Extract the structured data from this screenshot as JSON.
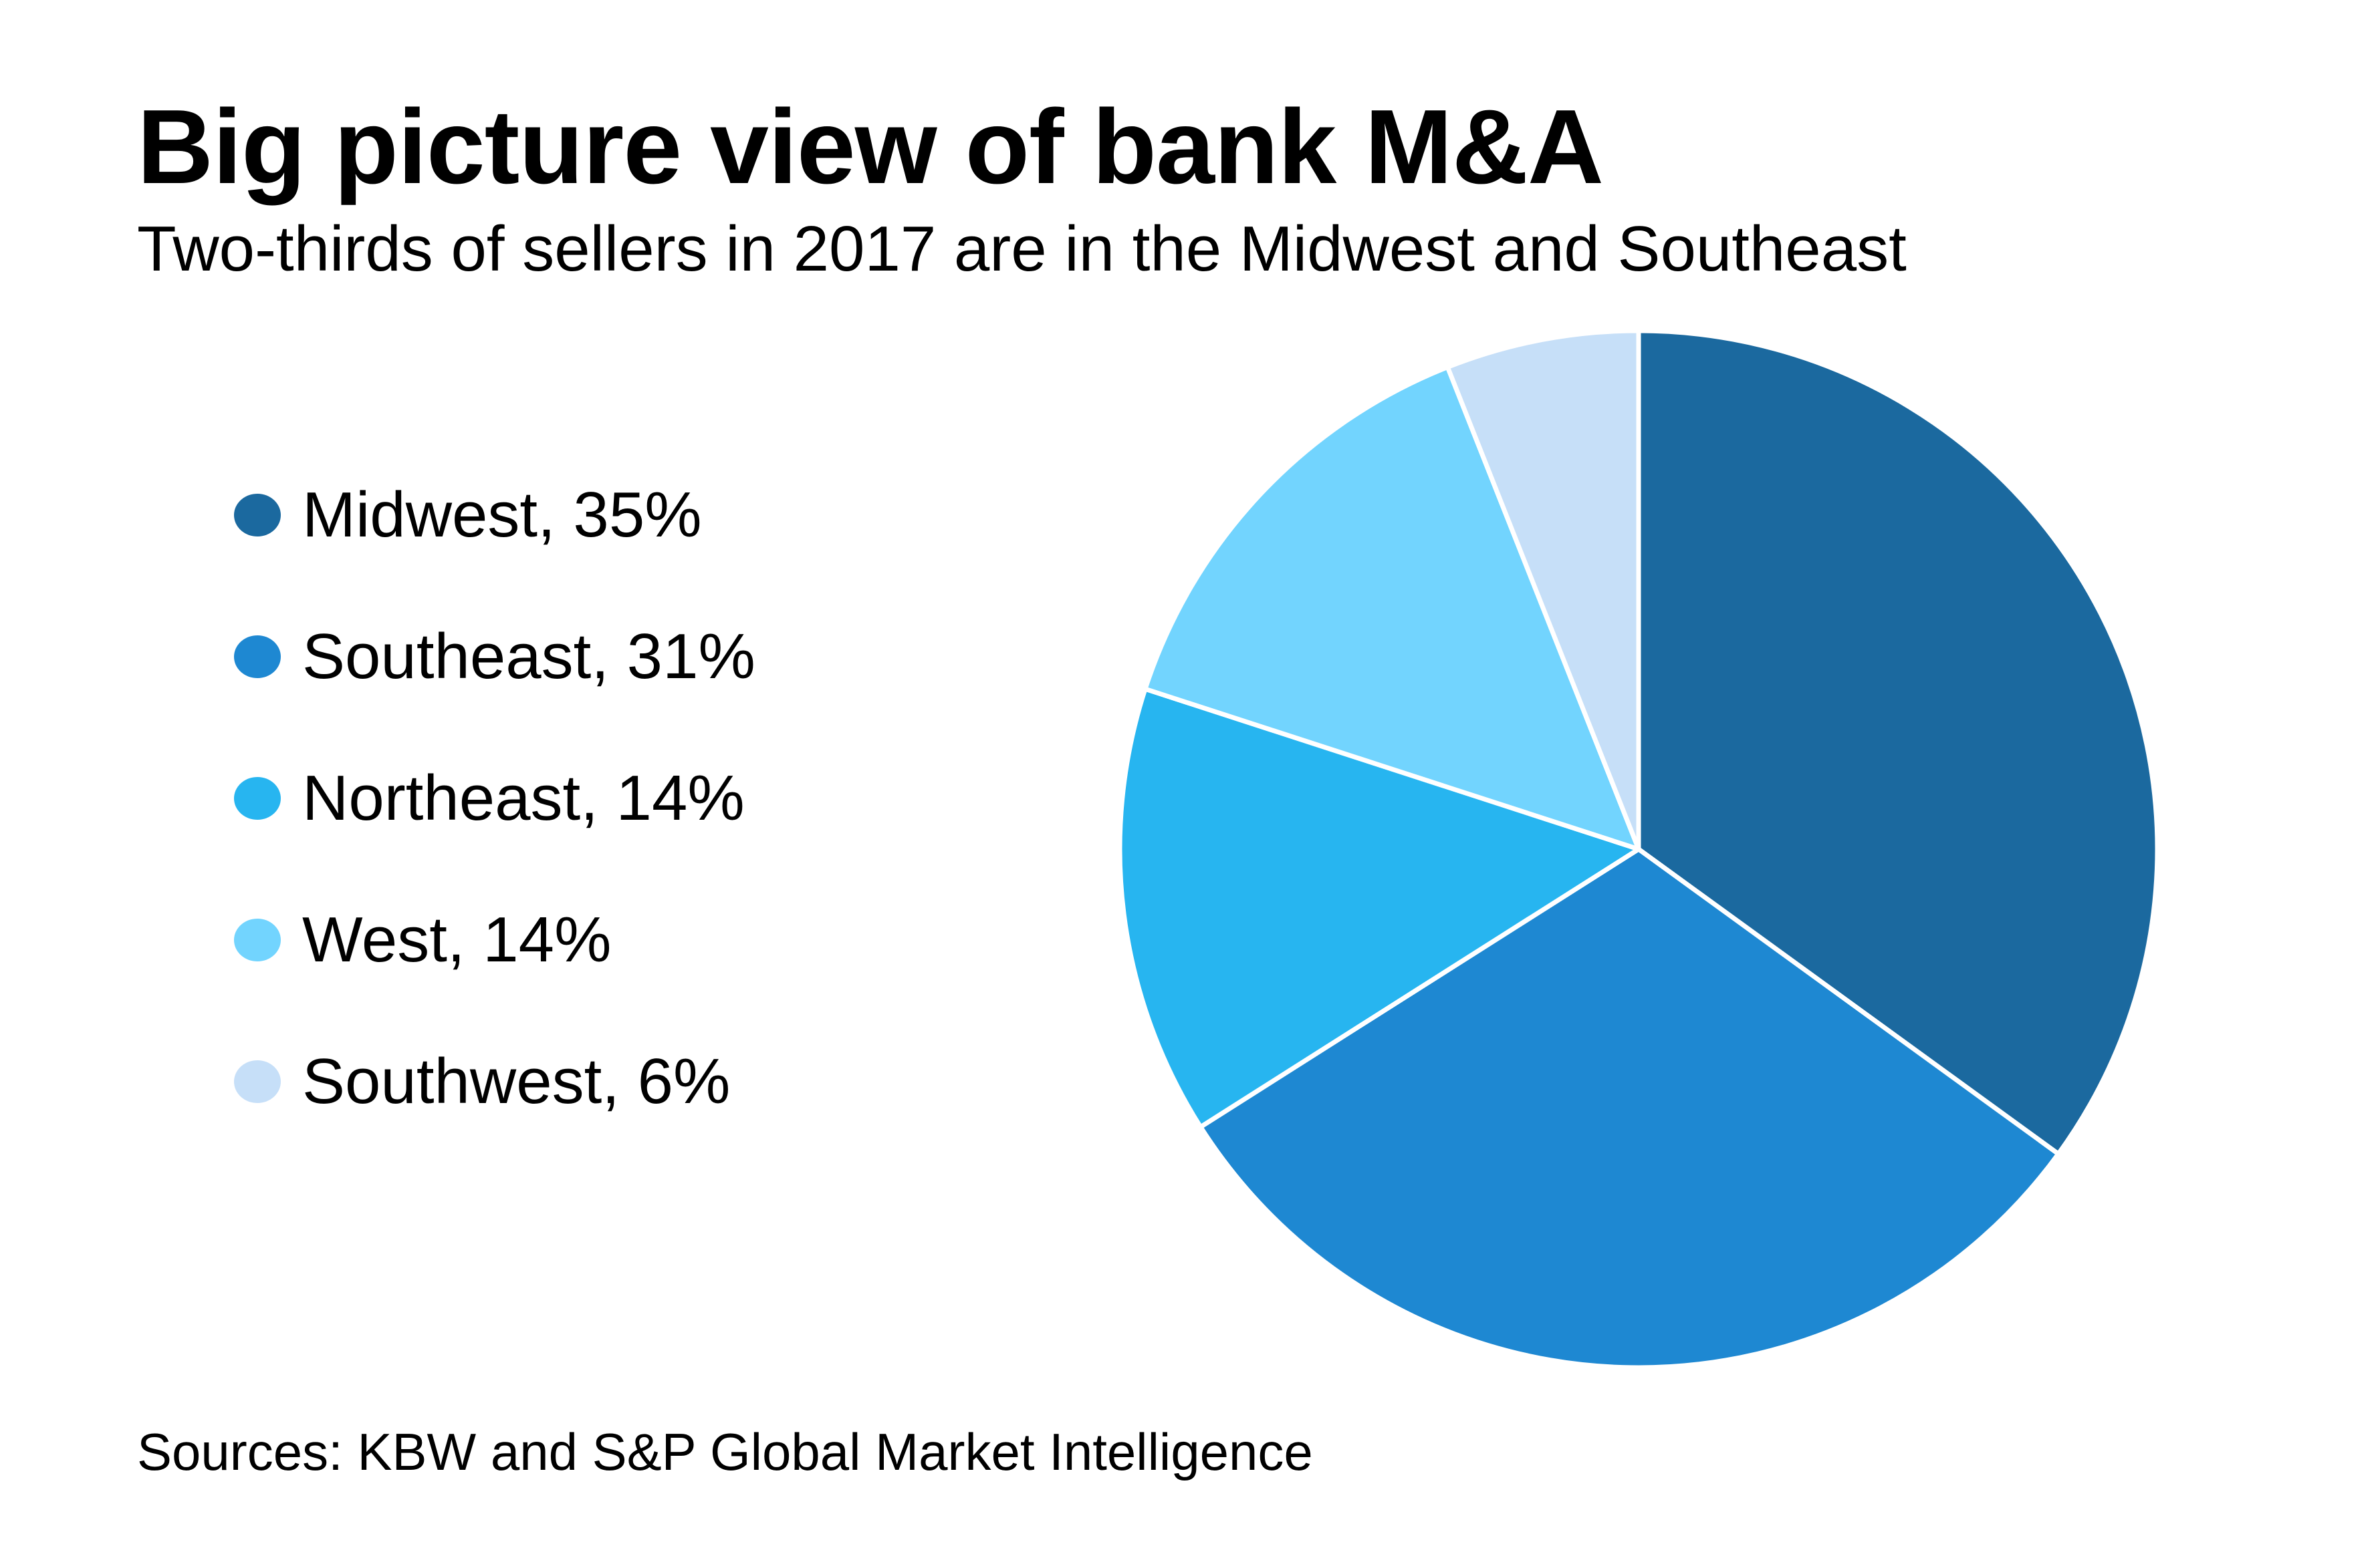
{
  "title": "Big picture view of bank M&A",
  "subtitle": "Two-thirds of sellers in 2017 are in the Midwest and Southeast",
  "source": "Sources: KBW and S&P Global Market Intelligence",
  "chart_data": {
    "type": "pie",
    "title": "Big picture view of bank M&A",
    "legend_position": "left",
    "slices": [
      {
        "label": "Midwest, 35%",
        "name": "Midwest",
        "value": 35,
        "color": "#1b699f"
      },
      {
        "label": "Southeast, 31%",
        "name": "Southeast",
        "value": 31,
        "color": "#1e88d2"
      },
      {
        "label": "Northeast, 14%",
        "name": "Northeast",
        "value": 14,
        "color": "#27b5f0"
      },
      {
        "label": "West, 14%",
        "name": "West",
        "value": 14,
        "color": "#72d4fe"
      },
      {
        "label": "Southwest, 6%",
        "name": "Southwest",
        "value": 6,
        "color": "#c6dff8"
      }
    ]
  }
}
